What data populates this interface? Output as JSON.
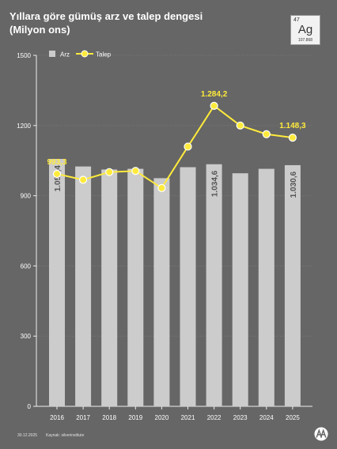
{
  "title": {
    "line1": "Yıllara göre gümüş arz ve talep dengesi",
    "line2": "(Milyon ons)"
  },
  "element": {
    "number": "47",
    "symbol": "Ag",
    "mass": "107.868"
  },
  "footer": {
    "date": "30.12.2025",
    "source": "Kaynak: silverinstitute"
  },
  "colors": {
    "background": "#666666",
    "bar": "#cccccc",
    "line": "#ffeb3b",
    "grid": "#7a7a7a"
  },
  "chart_data": {
    "type": "bar",
    "categories": [
      "2016",
      "2017",
      "2018",
      "2019",
      "2020",
      "2021",
      "2022",
      "2023",
      "2024",
      "2025"
    ],
    "series": [
      {
        "name": "Arz",
        "type": "bar",
        "values": [
          1057.4,
          1025,
          1012,
          1015,
          975,
          1022,
          1034.6,
          996,
          1015,
          1030.6
        ]
      },
      {
        "name": "Talep",
        "type": "line",
        "values": [
          993.3,
          968,
          1001,
          1006,
          933,
          1110,
          1284.2,
          1200,
          1163,
          1148.3
        ]
      }
    ],
    "bar_labels": [
      {
        "index": 0,
        "text": "1.057,4"
      },
      {
        "index": 6,
        "text": "1.034,6"
      },
      {
        "index": 9,
        "text": "1.030,6"
      }
    ],
    "line_labels": [
      {
        "index": 0,
        "text": "993,3"
      },
      {
        "index": 6,
        "text": "1.284,2"
      },
      {
        "index": 9,
        "text": "1.148,3"
      }
    ],
    "y_ticks": [
      "1500",
      "1200",
      "900",
      "600",
      "300",
      "0"
    ],
    "ylim": [
      0,
      1500
    ],
    "legend_position": "top-left",
    "grid": true
  }
}
